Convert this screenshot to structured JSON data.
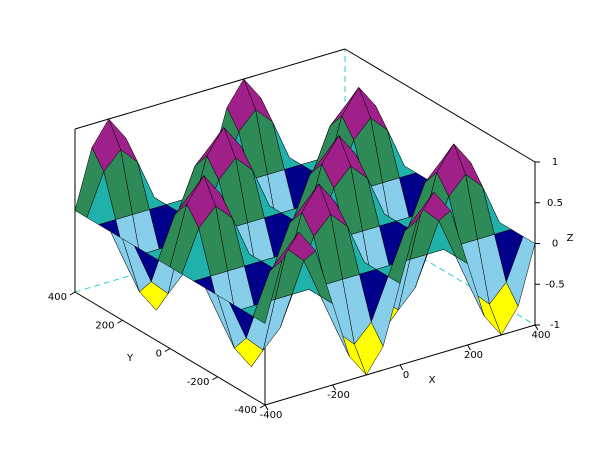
{
  "chart_data": {
    "type": "surface",
    "x_label": "X",
    "y_label": "Y",
    "z_label": "Z",
    "x": [
      -400,
      -350,
      -300,
      -250,
      -200,
      -150,
      -100,
      -50,
      0,
      50,
      100,
      150,
      200,
      250,
      300,
      350,
      400
    ],
    "y": [
      -400,
      -350,
      -300,
      -250,
      -200,
      -150,
      -100,
      -50,
      0,
      50,
      100,
      150,
      200,
      250,
      300,
      350,
      400
    ],
    "z": [
      [
        0,
        0.71,
        1,
        0.71,
        0,
        -0.71,
        -1,
        -0.71,
        0,
        0.71,
        1,
        0.71,
        0,
        -0.71,
        -1,
        -0.71,
        0
      ],
      [
        0,
        0.5,
        0.71,
        0.5,
        0,
        -0.5,
        -0.71,
        -0.5,
        0,
        0.5,
        0.71,
        0.5,
        0,
        -0.5,
        -0.71,
        -0.5,
        0
      ],
      [
        0,
        0,
        0,
        0,
        0,
        0,
        0,
        0,
        0,
        0,
        0,
        0,
        0,
        0,
        0,
        0,
        0
      ],
      [
        0,
        -0.5,
        -0.71,
        -0.5,
        0,
        0.5,
        0.71,
        0.5,
        0,
        -0.5,
        -0.71,
        -0.5,
        0,
        0.5,
        0.71,
        0.5,
        0
      ],
      [
        0,
        -0.71,
        -1,
        -0.71,
        0,
        0.71,
        1,
        0.71,
        0,
        -0.71,
        -1,
        -0.71,
        0,
        0.71,
        1,
        0.71,
        0
      ],
      [
        0,
        -0.5,
        -0.71,
        -0.5,
        0,
        0.5,
        0.71,
        0.5,
        0,
        -0.5,
        -0.71,
        -0.5,
        0,
        0.5,
        0.71,
        0.5,
        0
      ],
      [
        0,
        0,
        0,
        0,
        0,
        0,
        0,
        0,
        0,
        0,
        0,
        0,
        0,
        0,
        0,
        0,
        0
      ],
      [
        0,
        0.5,
        0.71,
        0.5,
        0,
        -0.5,
        -0.71,
        -0.5,
        0,
        0.5,
        0.71,
        0.5,
        0,
        -0.5,
        -0.71,
        -0.5,
        0
      ],
      [
        0,
        0.71,
        1,
        0.71,
        0,
        -0.71,
        -1,
        -0.71,
        0,
        0.71,
        1,
        0.71,
        0,
        -0.71,
        -1,
        -0.71,
        0
      ],
      [
        0,
        0.5,
        0.71,
        0.5,
        0,
        -0.5,
        -0.71,
        -0.5,
        0,
        0.5,
        0.71,
        0.5,
        0,
        -0.5,
        -0.71,
        -0.5,
        0
      ],
      [
        0,
        0,
        0,
        0,
        0,
        0,
        0,
        0,
        0,
        0,
        0,
        0,
        0,
        0,
        0,
        0,
        0
      ],
      [
        0,
        -0.5,
        -0.71,
        -0.5,
        0,
        0.5,
        0.71,
        0.5,
        0,
        -0.5,
        -0.71,
        -0.5,
        0,
        0.5,
        0.71,
        0.5,
        0
      ],
      [
        0,
        -0.71,
        -1,
        -0.71,
        0,
        0.71,
        1,
        0.71,
        0,
        -0.71,
        -1,
        -0.71,
        0,
        0.71,
        1,
        0.71,
        0
      ],
      [
        0,
        -0.5,
        -0.71,
        -0.5,
        0,
        0.5,
        0.71,
        0.5,
        0,
        -0.5,
        -0.71,
        -0.5,
        0,
        0.5,
        0.71,
        0.5,
        0
      ],
      [
        0,
        0,
        0,
        0,
        0,
        0,
        0,
        0,
        0,
        0,
        0,
        0,
        0,
        0,
        0,
        0,
        0
      ],
      [
        0,
        0.5,
        0.71,
        0.5,
        0,
        -0.5,
        -0.71,
        -0.5,
        0,
        0.5,
        0.71,
        0.5,
        0,
        -0.5,
        -0.71,
        -0.5,
        0
      ],
      [
        0,
        0.71,
        1,
        0.71,
        0,
        -0.71,
        -1,
        -0.71,
        0,
        0.71,
        1,
        0.71,
        0,
        -0.71,
        -1,
        -0.71,
        0
      ]
    ],
    "xlim": [
      -400,
      400
    ],
    "ylim": [
      -400,
      400
    ],
    "zlim": [
      -1,
      1
    ],
    "xticks": [
      -400,
      -200,
      0,
      200,
      400
    ],
    "yticks": [
      -400,
      -200,
      0,
      200,
      400
    ],
    "zticks": [
      -1,
      -0.5,
      0,
      0.5,
      1
    ],
    "colormap": [
      "#000000",
      "#ffffff",
      "#ffff00",
      "#ff00ff",
      "#00ffff",
      "#87ceeb",
      "#0000ff",
      "#00008b",
      "#228b22",
      "#20b2aa",
      "#2e8b57",
      "#b22222",
      "#8b0000",
      "#a0208a",
      "#8b4513",
      "#d9968e"
    ]
  }
}
